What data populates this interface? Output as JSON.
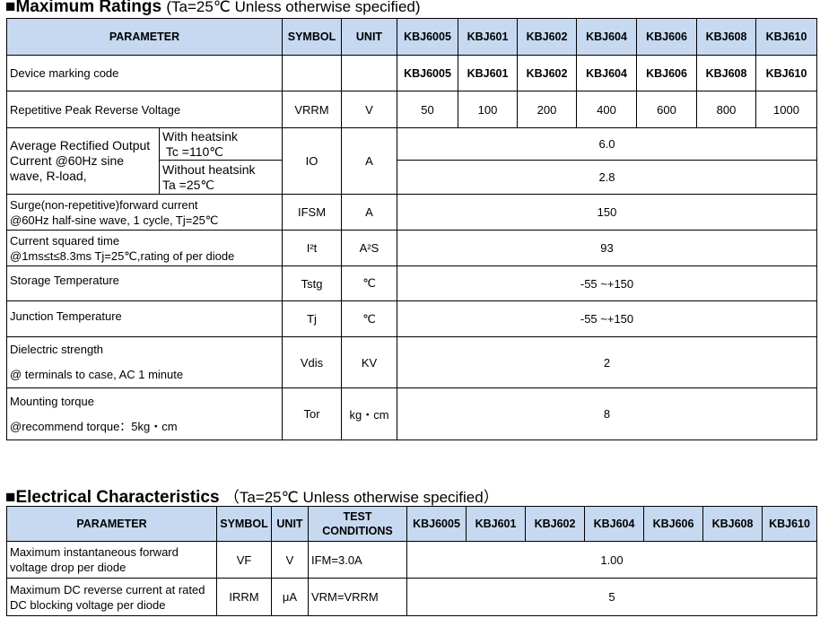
{
  "max_ratings": {
    "title": "■Maximum Ratings",
    "condition": "(Ta=25℃ Unless otherwise specified)",
    "headers": {
      "parameter": "PARAMETER",
      "symbol": "SYMBOL",
      "unit": "UNIT"
    },
    "models": [
      "KBJ6005",
      "KBJ601",
      "KBJ602",
      "KBJ604",
      "KBJ606",
      "KBJ608",
      "KBJ610"
    ],
    "rows": {
      "marking": {
        "param": "Device marking code",
        "values": [
          "KBJ6005",
          "KBJ601",
          "KBJ602",
          "KBJ604",
          "KBJ606",
          "KBJ608",
          "KBJ610"
        ]
      },
      "vrrm": {
        "param": "Repetitive Peak Reverse Voltage",
        "symbol": "VRRM",
        "unit": "V",
        "values": [
          "50",
          "100",
          "200",
          "400",
          "600",
          "800",
          "1000"
        ]
      },
      "io": {
        "param": "Average Rectified Output Current @60Hz sine wave, R-load,",
        "cond1a": "With heatsink",
        "cond1b": "Tc =110℃",
        "cond2a": "Without heatsink",
        "cond2b": "Ta =25℃",
        "symbol": "IO",
        "unit": "A",
        "value1": "6.0",
        "value2": "2.8"
      },
      "ifsm": {
        "param1": "Surge(non-repetitive)forward current",
        "param2": "@60Hz half-sine wave, 1 cycle,  Tj=25℃",
        "symbol": "IFSM",
        "unit": "A",
        "value": "150"
      },
      "i2t": {
        "param1": "Current squared time",
        "param2": "@1ms≤t≤8.3ms Tj=25℃,rating of per diode",
        "symbol": "I²t",
        "unit": "A²S",
        "value": "93"
      },
      "tstg": {
        "param": "Storage Temperature",
        "symbol": "Tstg",
        "unit": "℃",
        "value": "-55 ~+150"
      },
      "tj": {
        "param": "Junction Temperature",
        "symbol": "Tj",
        "unit": "℃",
        "value": "-55 ~+150"
      },
      "vdis": {
        "param1": "Dielectric strength",
        "param2": "@ terminals to case, AC 1 minute",
        "symbol": "Vdis",
        "unit": "KV",
        "value": "2"
      },
      "tor": {
        "param1": "Mounting torque",
        "param2": "@recommend torque：5kg・cm",
        "symbol": "Tor",
        "unit": "kg・cm",
        "value": "8"
      }
    }
  },
  "electrical": {
    "title": "■Electrical Characteristics",
    "condition": "（Ta=25℃ Unless otherwise specified）",
    "headers": {
      "parameter": "PARAMETER",
      "symbol": "SYMBOL",
      "unit": "UNIT",
      "test1": "TEST",
      "test2": "CONDITIONS"
    },
    "models": [
      "KBJ6005",
      "KBJ601",
      "KBJ602",
      "KBJ604",
      "KBJ606",
      "KBJ608",
      "KBJ610"
    ],
    "rows": [
      {
        "param": "Maximum instantaneous forward voltage drop per diode",
        "symbol": "VF",
        "unit": "V",
        "test": "IFM=3.0A",
        "value": "1.00"
      },
      {
        "param": "Maximum DC reverse current at rated DC blocking voltage per diode",
        "symbol": "IRRM",
        "unit": "μA",
        "test": "VRM=VRRM",
        "value": "5"
      }
    ]
  }
}
